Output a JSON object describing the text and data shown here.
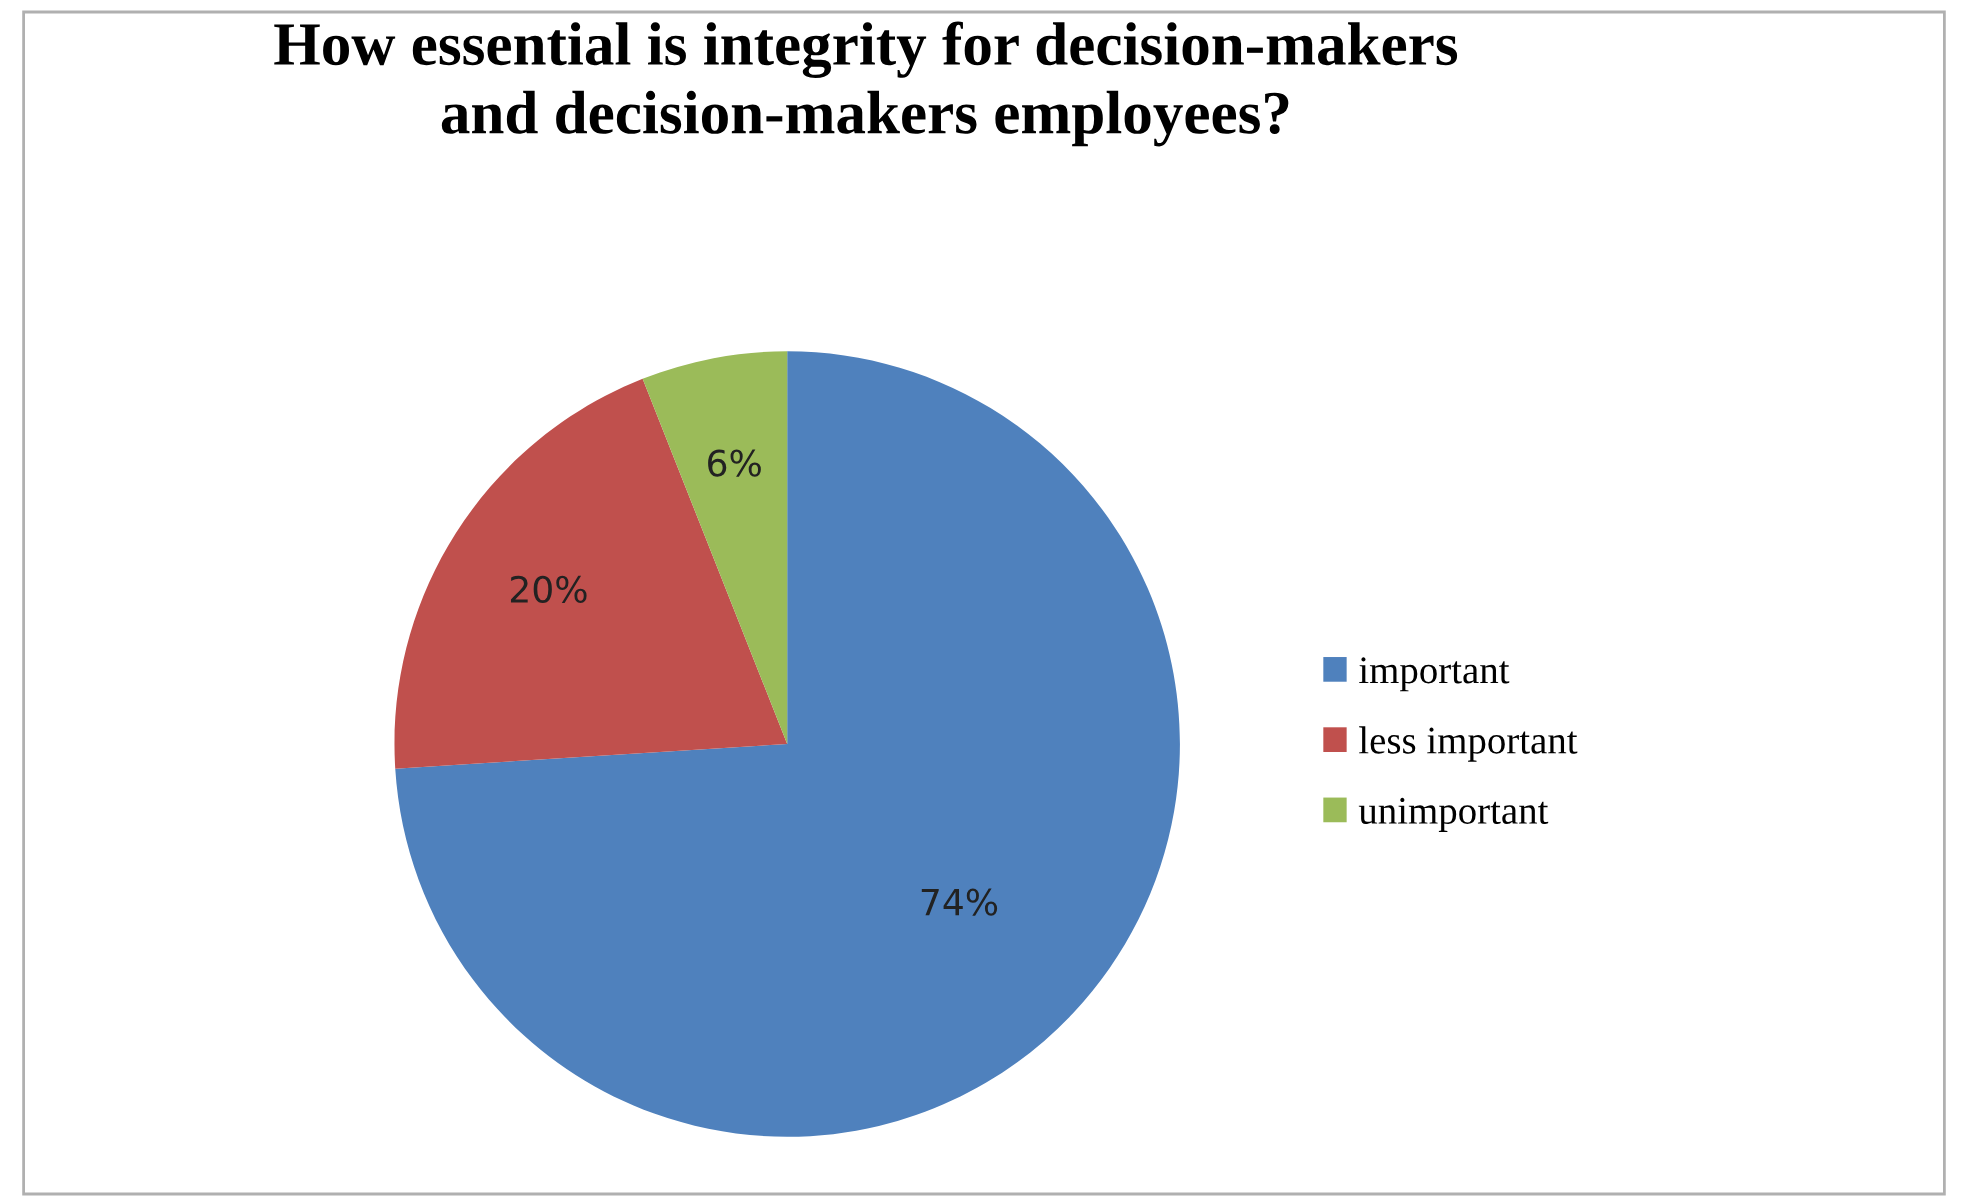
{
  "chart_data": {
    "type": "pie",
    "title": "How essential is integrity for decision-makers\nand decision-makers employees?",
    "categories": [
      "important",
      "less important",
      "unimportant"
    ],
    "values": [
      74,
      20,
      6
    ],
    "colors": [
      "#4f81bd",
      "#c0504d",
      "#9bbb59"
    ],
    "value_labels": [
      "74%",
      "20%",
      "6%"
    ],
    "legend": "right"
  }
}
